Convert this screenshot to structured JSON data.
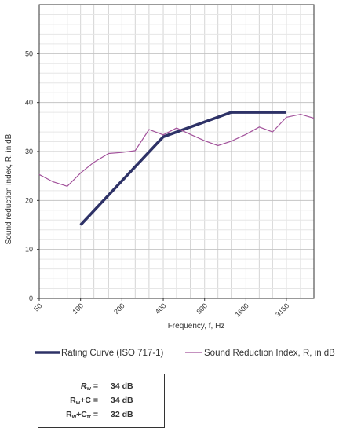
{
  "chart_data": {
    "type": "line",
    "title": "",
    "xlabel": "Frequency, f, Hz",
    "ylabel": "Sound reduction index, R, in dB",
    "x_scale": "log",
    "x_tick_labels": [
      "50",
      "100",
      "200",
      "400",
      "800",
      "1600",
      "3150"
    ],
    "xlim": [
      50,
      5000
    ],
    "ylim": [
      0,
      60
    ],
    "y_ticks": [
      0,
      10,
      20,
      30,
      40,
      50
    ],
    "grid": true,
    "legend_position": "bottom",
    "series": [
      {
        "name": "Rating Curve (ISO 717-1)",
        "color": "#2e3267",
        "style": "thick",
        "x": [
          100,
          400,
          1250,
          3150
        ],
        "y": [
          15,
          33,
          38,
          38
        ]
      },
      {
        "name": "Sound Reduction Index, R, in dB",
        "color": "#a2529b",
        "style": "thin",
        "x": [
          50,
          63,
          80,
          100,
          125,
          160,
          200,
          250,
          315,
          400,
          500,
          630,
          800,
          1000,
          1250,
          1600,
          2000,
          2500,
          3150,
          4000,
          5000
        ],
        "y": [
          25.3,
          23.8,
          22.9,
          25.6,
          27.8,
          29.6,
          29.8,
          30.2,
          34.5,
          33.4,
          34.8,
          33.5,
          32.2,
          31.2,
          32.1,
          33.5,
          35.0,
          34.0,
          37.0,
          37.6,
          36.8
        ]
      }
    ]
  },
  "results": [
    {
      "label_main": "R",
      "label_sub": "w",
      "label_suffix": "",
      "label_suffix_sub": "",
      "equals": "=",
      "value": "34 dB"
    },
    {
      "label_main": "R",
      "label_sub": "w",
      "label_suffix": "+C",
      "label_suffix_sub": "",
      "equals": "=",
      "value": "34 dB"
    },
    {
      "label_main": "R",
      "label_sub": "w",
      "label_suffix": "+C",
      "label_suffix_sub": "tr",
      "equals": "=",
      "value": "32 dB"
    }
  ]
}
